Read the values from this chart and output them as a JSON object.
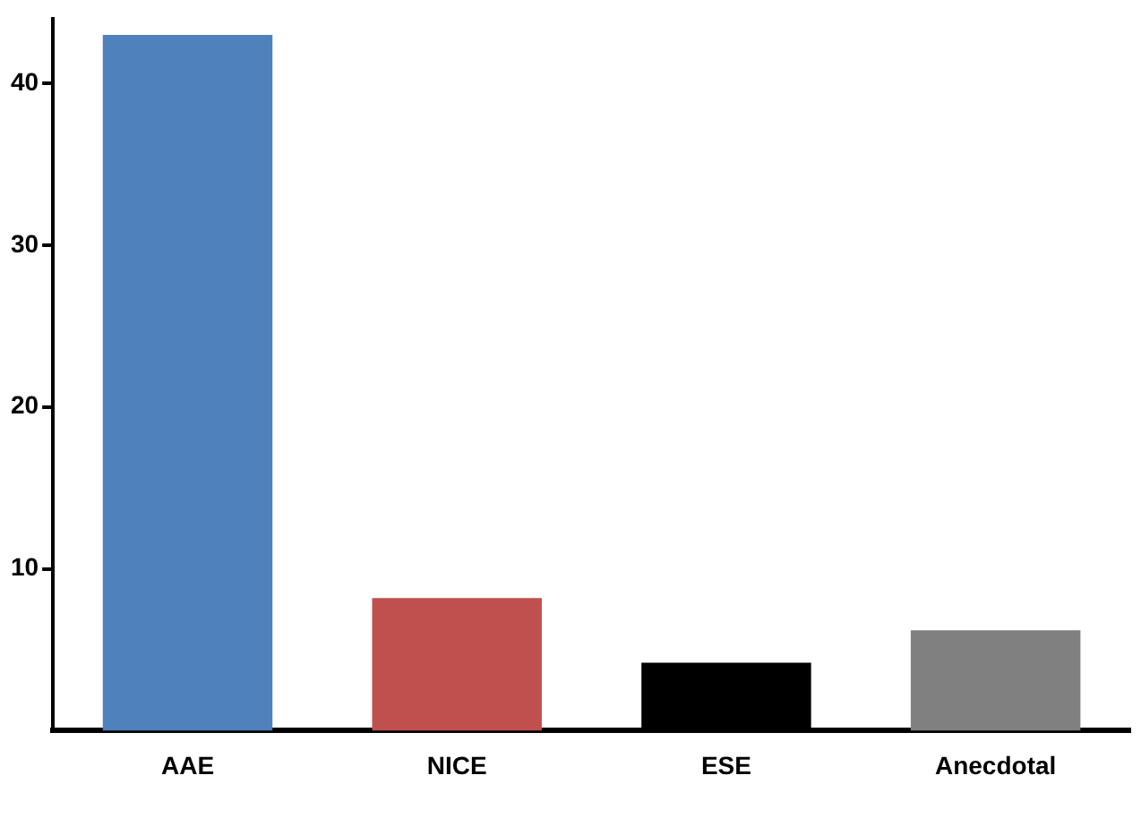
{
  "chart_data": {
    "type": "bar",
    "categories": [
      "AAE",
      "NICE",
      "ESE",
      "Anecdotal"
    ],
    "values": [
      43,
      8.2,
      4.2,
      6.2
    ],
    "colors": [
      "#4f81bd",
      "#c0504d",
      "#000000",
      "#808080"
    ],
    "ylim": [
      0,
      44
    ],
    "yticks": [
      10,
      20,
      30,
      40
    ],
    "grid": false,
    "legend": false
  }
}
